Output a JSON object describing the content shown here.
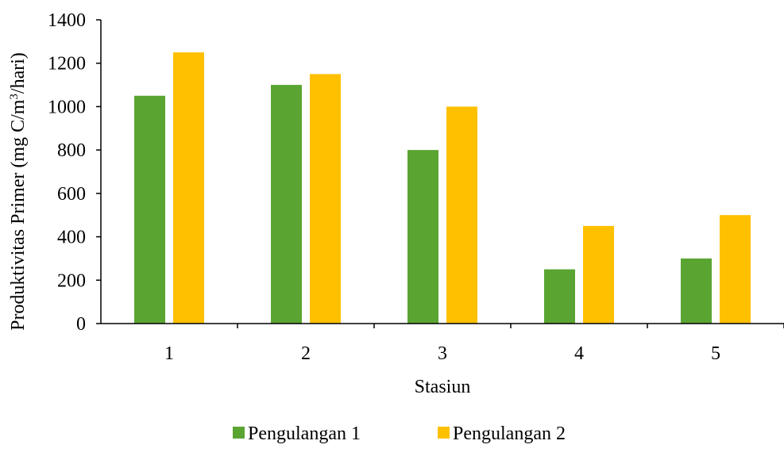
{
  "chart_data": {
    "type": "bar",
    "title": "",
    "xlabel": "Stasiun",
    "ylabel_main": "Produktivitas Primer (mg C/m",
    "ylabel_sup": "3",
    "ylabel_tail": "/hari)",
    "categories": [
      "1",
      "2",
      "3",
      "4",
      "5"
    ],
    "yticks": [
      "0",
      "200",
      "400",
      "600",
      "800",
      "1000",
      "1200",
      "1400"
    ],
    "ylim": [
      0,
      1400
    ],
    "grid": false,
    "legend_position": "bottom",
    "series": [
      {
        "name": "Pengulangan 1",
        "color": "#5aa532",
        "values": [
          1050,
          1100,
          800,
          250,
          300
        ]
      },
      {
        "name": "Pengulangan 2",
        "color": "#ffc000",
        "values": [
          1250,
          1150,
          1000,
          450,
          500
        ]
      }
    ]
  }
}
